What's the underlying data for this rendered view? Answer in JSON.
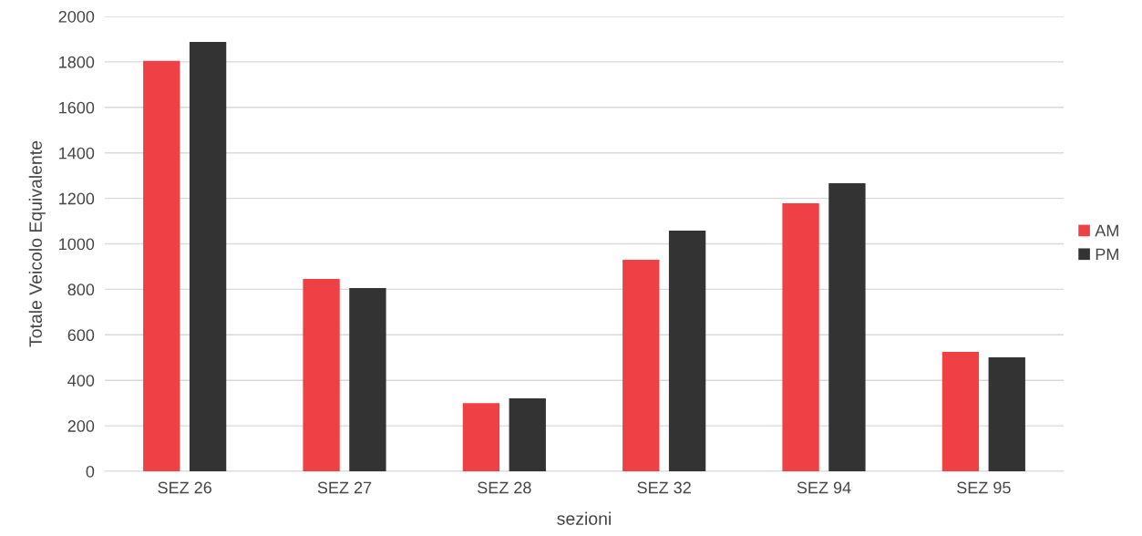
{
  "chart_data": {
    "type": "bar",
    "xlabel": "sezioni",
    "ylabel": "Totale Veicolo Equivalente",
    "categories": [
      "SEZ 26",
      "SEZ 27",
      "SEZ 28",
      "SEZ 32",
      "SEZ 94",
      "SEZ 95"
    ],
    "series": [
      {
        "name": "AM",
        "color": "#ef4046",
        "values": [
          1805,
          846,
          300,
          930,
          1178,
          525
        ]
      },
      {
        "name": "PM",
        "color": "#333333",
        "values": [
          1888,
          806,
          321,
          1058,
          1267,
          501
        ]
      }
    ],
    "ylim": [
      0,
      2000
    ],
    "yticks": [
      0,
      200,
      400,
      600,
      800,
      1000,
      1200,
      1400,
      1600,
      1800,
      2000
    ],
    "grid": "y",
    "legend": "right"
  }
}
